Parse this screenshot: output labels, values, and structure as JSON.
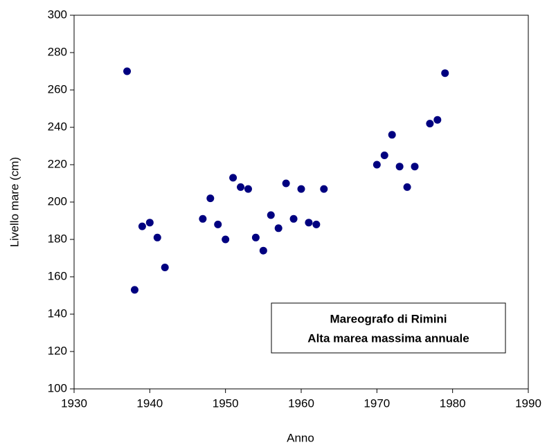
{
  "chart_data": {
    "type": "scatter",
    "x_label": "Anno",
    "y_label": "Livello mare (cm)",
    "annotation": [
      "Mareografo di Rimini",
      "Alta marea massima annuale"
    ],
    "series": [
      {
        "color": "#000080",
        "x": [
          1937,
          1938,
          1939,
          1940,
          1941,
          1942,
          1947,
          1948,
          1949,
          1950,
          1951,
          1952,
          1953,
          1954,
          1955,
          1956,
          1957,
          1958,
          1959,
          1960,
          1961,
          1962,
          1963,
          1970,
          1971,
          1972,
          1973,
          1974,
          1975,
          1977,
          1978,
          1979
        ],
        "values": [
          270,
          153,
          187,
          189,
          181,
          165,
          191,
          202,
          188,
          180,
          213,
          208,
          207,
          181,
          174,
          193,
          186,
          210,
          191,
          207,
          189,
          188,
          207,
          220,
          225,
          236,
          219,
          208,
          219,
          242,
          244,
          269
        ]
      }
    ],
    "xlim": [
      1930,
      1990
    ],
    "xticks": [
      1930,
      1940,
      1950,
      1960,
      1970,
      1980,
      1990
    ],
    "ylim": [
      100,
      300
    ],
    "yticks": [
      100,
      120,
      140,
      160,
      180,
      200,
      220,
      240,
      260,
      280,
      300
    ],
    "grid": false
  }
}
